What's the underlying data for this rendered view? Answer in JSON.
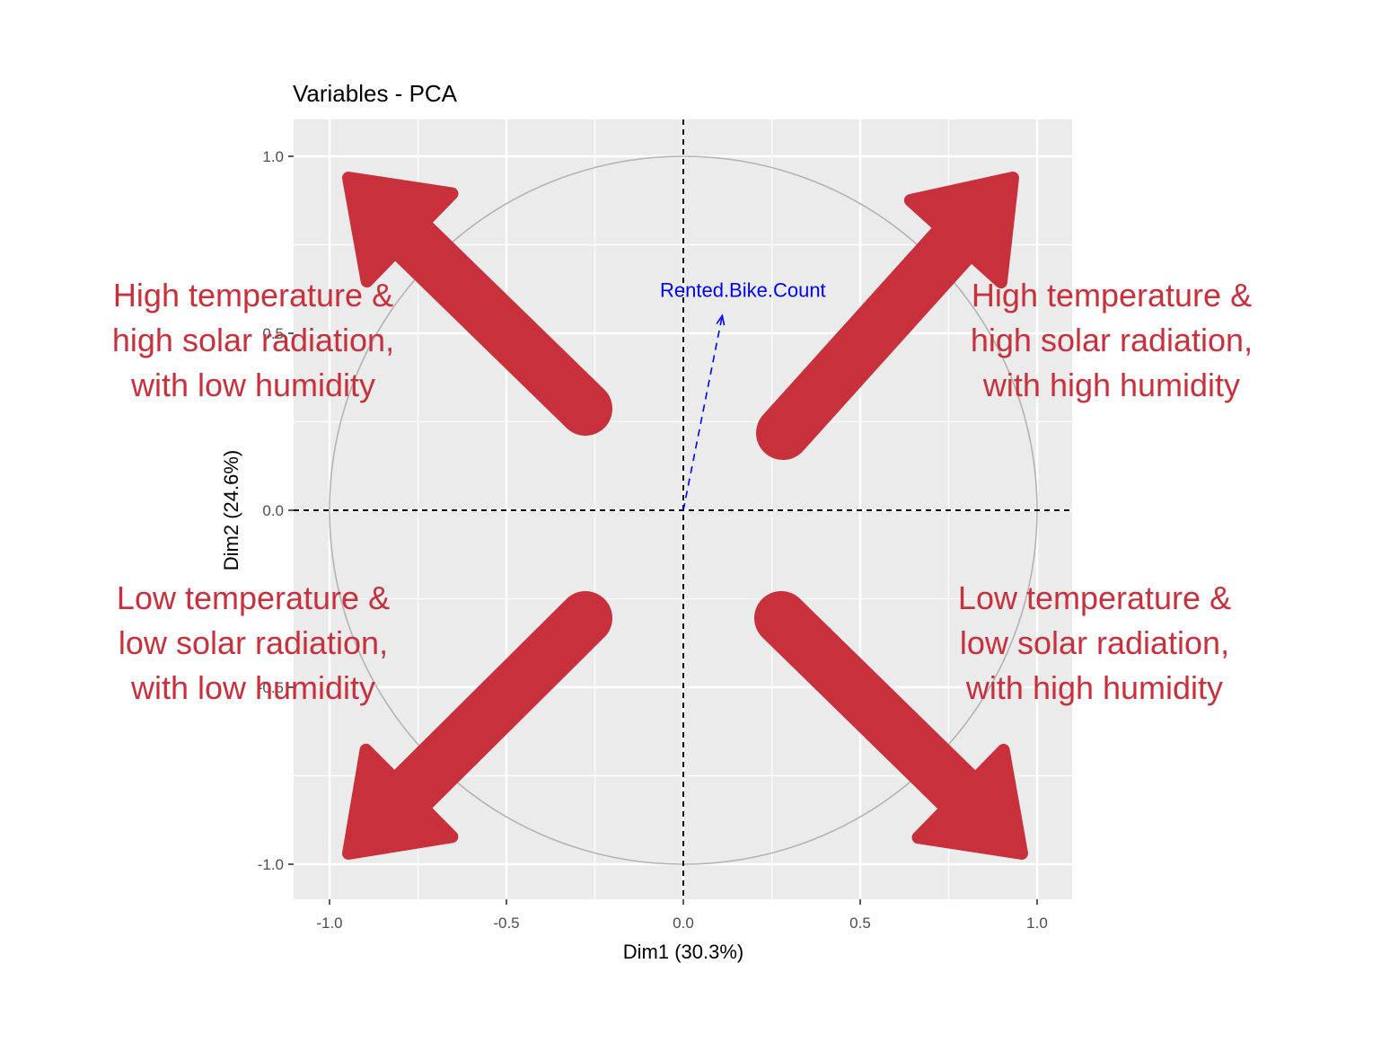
{
  "chart_data": {
    "type": "scatter",
    "title": "Variables - PCA",
    "xlabel": "Dim1 (30.3%)",
    "ylabel": "Dim2 (24.6%)",
    "xlim": [
      -1.1,
      1.1
    ],
    "ylim": [
      -1.1,
      1.1
    ],
    "xticks": [
      -1.0,
      -0.5,
      0.0,
      0.5,
      1.0
    ],
    "yticks": [
      -1.0,
      -0.5,
      0.0,
      0.5,
      1.0
    ],
    "xtick_labels": [
      "-1.0",
      "-0.5",
      "0.0",
      "0.5",
      "1.0"
    ],
    "ytick_labels": [
      "-1.0",
      "-0.5",
      "0.0",
      "0.5",
      "1.0"
    ],
    "grid": true,
    "correlation_circle_radius": 1.0,
    "variables": [
      {
        "name": "Rented.Bike.Count",
        "x": 0.11,
        "y": 0.55,
        "color": "#0000ff"
      }
    ],
    "annotations": [
      {
        "quadrant": "top-left",
        "lines": [
          "High temperature &",
          "high solar radiation,",
          "with low humidity"
        ]
      },
      {
        "quadrant": "top-right",
        "lines": [
          "High temperature &",
          "high solar radiation,",
          "with high humidity"
        ]
      },
      {
        "quadrant": "bottom-left",
        "lines": [
          "Low temperature &",
          "low solar radiation,",
          "with low humidity"
        ]
      },
      {
        "quadrant": "bottom-right",
        "lines": [
          "Low temperature &",
          "low solar radiation,",
          "with high humidity"
        ]
      }
    ],
    "colors": {
      "panel_background": "#ebebeb",
      "grid": "#ffffff",
      "circle": "#b3b3b3",
      "annotation": "#c8303b",
      "variable_arrow": "#0000ff"
    }
  }
}
